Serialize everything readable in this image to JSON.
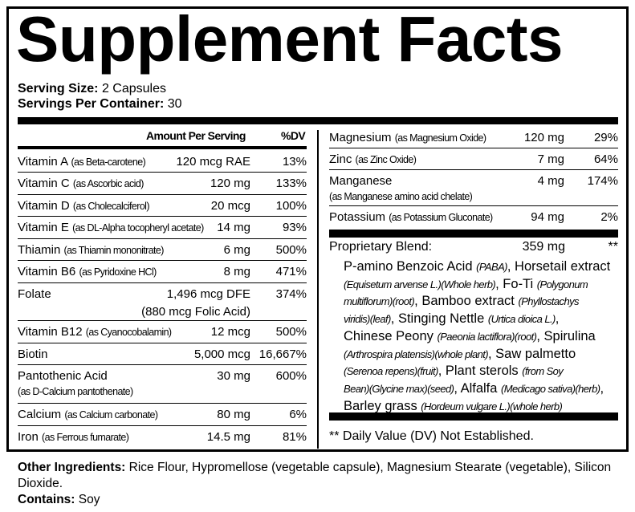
{
  "title": "Supplement Facts",
  "serving": {
    "size_label": "Serving Size:",
    "size_value": "2 Capsules",
    "per_container_label": "Servings Per Container:",
    "per_container_value": "30"
  },
  "headers": {
    "amount": "Amount Per Serving",
    "dv": "%DV"
  },
  "left_rows": [
    {
      "name": "Vitamin A",
      "source": "(as Beta-carotene)",
      "amount": "120 mcg RAE",
      "dv": "13%"
    },
    {
      "name": "Vitamin C",
      "source": "(as Ascorbic acid)",
      "amount": "120 mg",
      "dv": "133%"
    },
    {
      "name": "Vitamin D",
      "source": "(as Cholecalciferol)",
      "amount": "20 mcg",
      "dv": "100%"
    },
    {
      "name": "Vitamin E",
      "source": "(as DL-Alpha tocopheryl acetate)",
      "amount": "14 mg",
      "dv": "93%"
    },
    {
      "name": "Thiamin",
      "source": "(as Thiamin mononitrate)",
      "amount": "6 mg",
      "dv": "500%"
    },
    {
      "name": "Vitamin B6",
      "source": "(as Pyridoxine HCl)",
      "amount": "8 mg",
      "dv": "471%"
    },
    {
      "name": "Folate",
      "source": "",
      "amount": "1,496 mcg DFE",
      "amount_sub": "(880 mcg Folic Acid)",
      "dv": "374%"
    },
    {
      "name": "Vitamin B12",
      "source": "(as Cyanocobalamin)",
      "amount": "12 mcg",
      "dv": "500%"
    },
    {
      "name": "Biotin",
      "source": "",
      "amount": "5,000 mcg",
      "dv": "16,667%"
    },
    {
      "name": "Pantothenic Acid",
      "source": "(as  D-Calcium pantothenate)",
      "amount": "30 mg",
      "dv": "600%"
    },
    {
      "name": "Calcium",
      "source": "(as Calcium carbonate)",
      "amount": "80 mg",
      "dv": "6%"
    },
    {
      "name": "Iron",
      "source": "(as Ferrous fumarate)",
      "amount": "14.5 mg",
      "dv": "81%"
    }
  ],
  "right_rows": [
    {
      "name": "Magnesium",
      "source": "(as Magnesium Oxide)",
      "amount": "120 mg",
      "dv": "29%"
    },
    {
      "name": "Zinc",
      "source": "(as Zinc Oxide)",
      "amount": "7 mg",
      "dv": "64%"
    },
    {
      "name": "Manganese",
      "source": "(as Manganese amino acid chelate)",
      "amount": "4 mg",
      "dv": "174%"
    },
    {
      "name": "Potassium",
      "source": "(as Potassium Gluconate)",
      "amount": "94 mg",
      "dv": "2%"
    }
  ],
  "blend": {
    "label": "Proprietary Blend:",
    "amount": "359 mg",
    "dv": "**",
    "lines": [
      [
        {
          "t": "P-amino Benzoic Acid ",
          "i": false
        },
        {
          "t": "(PABA)",
          "i": true
        },
        {
          "t": ", Horsetail extract",
          "i": false
        }
      ],
      [
        {
          "t": "(Equisetum arvense L.)(Whole herb)",
          "i": true
        },
        {
          "t": ", Fo-Ti ",
          "i": false
        },
        {
          "t": "(Polygonum",
          "i": true
        }
      ],
      [
        {
          "t": "multiflorum)(root)",
          "i": true
        },
        {
          "t": ", Bamboo extract ",
          "i": false
        },
        {
          "t": "(Phyllostachys",
          "i": true
        }
      ],
      [
        {
          "t": "viridis)(leaf)",
          "i": true
        },
        {
          "t": ", Stinging Nettle  ",
          "i": false
        },
        {
          "t": "(Urtica dioica L.)",
          "i": true
        },
        {
          "t": ",",
          "i": false
        }
      ],
      [
        {
          "t": "Chinese Peony ",
          "i": false
        },
        {
          "t": "(Paeonia lactiflora)(root)",
          "i": true
        },
        {
          "t": ", Spirulina",
          "i": false
        }
      ],
      [
        {
          "t": "(Arthrospira platensis)(whole plant)",
          "i": true
        },
        {
          "t": ", Saw palmetto",
          "i": false
        }
      ],
      [
        {
          "t": "(Serenoa repens)(fruit)",
          "i": true
        },
        {
          "t": ", Plant sterols ",
          "i": false
        },
        {
          "t": "(from Soy",
          "i": true
        }
      ],
      [
        {
          "t": "Bean)(Glycine max)(seed)",
          "i": true
        },
        {
          "t": ", Alfalfa ",
          "i": false
        },
        {
          "t": "(Medicago sativa)(herb)",
          "i": true
        },
        {
          "t": ",",
          "i": false
        }
      ],
      [
        {
          "t": "Barley grass ",
          "i": false
        },
        {
          "t": "(Hordeum vulgare L.)(whole herb)",
          "i": true
        }
      ]
    ]
  },
  "footnote": "** Daily Value (DV) Not Established.",
  "other": {
    "label": "Other Ingredients:",
    "value": "Rice Flour, Hypromellose (vegetable capsule), Magnesium Stearate (vegetable), Silicon Dioxide.",
    "contains_label": "Contains:",
    "contains_value": "Soy"
  }
}
